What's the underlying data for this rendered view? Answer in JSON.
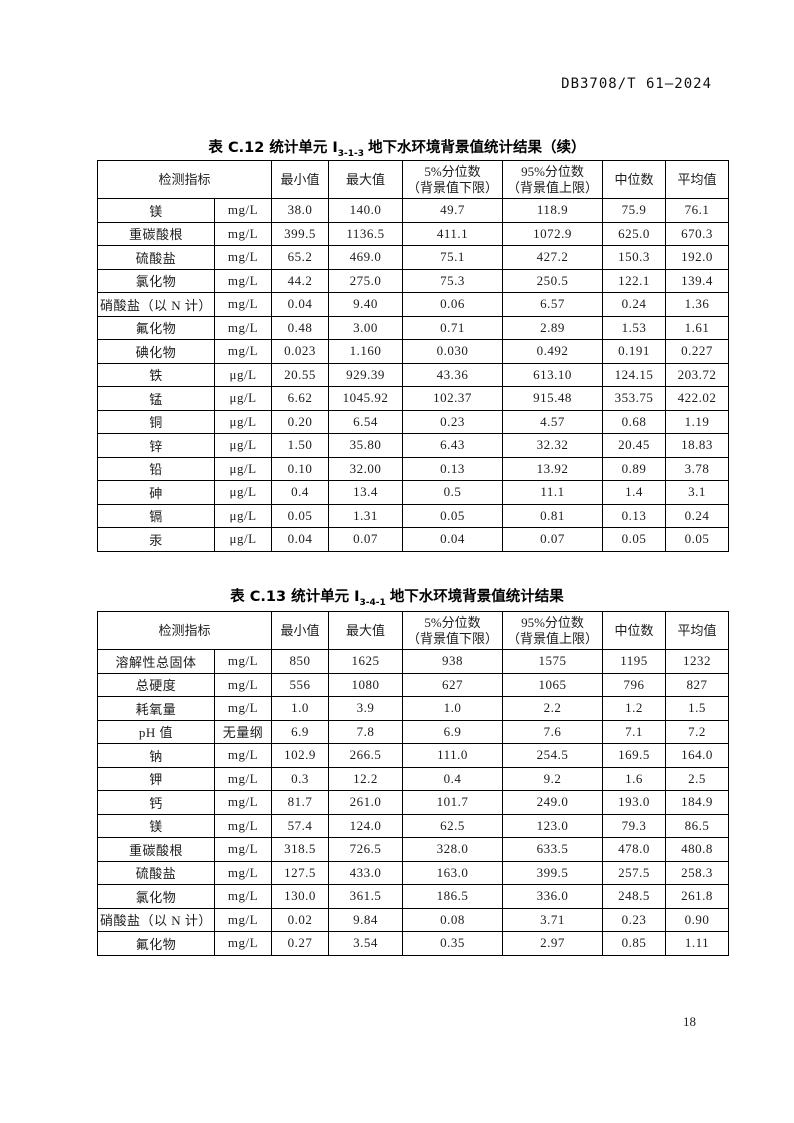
{
  "header": {
    "doc_code": "DB3708/T 61—2024"
  },
  "footer": {
    "page_number": "18"
  },
  "tables": [
    {
      "title": {
        "prefix": "表 C.12  统计单元  Ⅰ",
        "subscript": "3-1-3",
        "suffix": "地下水环境背景值统计结果（续）"
      },
      "columns": {
        "indicator": "检测指标",
        "min": "最小值",
        "max": "最大值",
        "p5_line1": "5%分位数",
        "p5_line2": "（背景值下限）",
        "p95_line1": "95%分位数",
        "p95_line2": "（背景值上限）",
        "median": "中位数",
        "mean": "平均值"
      },
      "rows": [
        [
          "镁",
          "mg/L",
          "38.0",
          "140.0",
          "49.7",
          "118.9",
          "75.9",
          "76.1"
        ],
        [
          "重碳酸根",
          "mg/L",
          "399.5",
          "1136.5",
          "411.1",
          "1072.9",
          "625.0",
          "670.3"
        ],
        [
          "硫酸盐",
          "mg/L",
          "65.2",
          "469.0",
          "75.1",
          "427.2",
          "150.3",
          "192.0"
        ],
        [
          "氯化物",
          "mg/L",
          "44.2",
          "275.0",
          "75.3",
          "250.5",
          "122.1",
          "139.4"
        ],
        [
          "硝酸盐（以 N 计）",
          "mg/L",
          "0.04",
          "9.40",
          "0.06",
          "6.57",
          "0.24",
          "1.36"
        ],
        [
          "氟化物",
          "mg/L",
          "0.48",
          "3.00",
          "0.71",
          "2.89",
          "1.53",
          "1.61"
        ],
        [
          "碘化物",
          "mg/L",
          "0.023",
          "1.160",
          "0.030",
          "0.492",
          "0.191",
          "0.227"
        ],
        [
          "铁",
          "μg/L",
          "20.55",
          "929.39",
          "43.36",
          "613.10",
          "124.15",
          "203.72"
        ],
        [
          "锰",
          "μg/L",
          "6.62",
          "1045.92",
          "102.37",
          "915.48",
          "353.75",
          "422.02"
        ],
        [
          "铜",
          "μg/L",
          "0.20",
          "6.54",
          "0.23",
          "4.57",
          "0.68",
          "1.19"
        ],
        [
          "锌",
          "μg/L",
          "1.50",
          "35.80",
          "6.43",
          "32.32",
          "20.45",
          "18.83"
        ],
        [
          "铅",
          "μg/L",
          "0.10",
          "32.00",
          "0.13",
          "13.92",
          "0.89",
          "3.78"
        ],
        [
          "砷",
          "μg/L",
          "0.4",
          "13.4",
          "0.5",
          "11.1",
          "1.4",
          "3.1"
        ],
        [
          "镉",
          "μg/L",
          "0.05",
          "1.31",
          "0.05",
          "0.81",
          "0.13",
          "0.24"
        ],
        [
          "汞",
          "μg/L",
          "0.04",
          "0.07",
          "0.04",
          "0.07",
          "0.05",
          "0.05"
        ]
      ]
    },
    {
      "title": {
        "prefix": "表 C.13  统计单元  Ⅰ",
        "subscript": "3-4-1",
        "suffix": "地下水环境背景值统计结果"
      },
      "columns": {
        "indicator": "检测指标",
        "min": "最小值",
        "max": "最大值",
        "p5_line1": "5%分位数",
        "p5_line2": "（背景值下限）",
        "p95_line1": "95%分位数",
        "p95_line2": "（背景值上限）",
        "median": "中位数",
        "mean": "平均值"
      },
      "rows": [
        [
          "溶解性总固体",
          "mg/L",
          "850",
          "1625",
          "938",
          "1575",
          "1195",
          "1232"
        ],
        [
          "总硬度",
          "mg/L",
          "556",
          "1080",
          "627",
          "1065",
          "796",
          "827"
        ],
        [
          "耗氧量",
          "mg/L",
          "1.0",
          "3.9",
          "1.0",
          "2.2",
          "1.2",
          "1.5"
        ],
        [
          "pH 值",
          "无量纲",
          "6.9",
          "7.8",
          "6.9",
          "7.6",
          "7.1",
          "7.2"
        ],
        [
          "钠",
          "mg/L",
          "102.9",
          "266.5",
          "111.0",
          "254.5",
          "169.5",
          "164.0"
        ],
        [
          "钾",
          "mg/L",
          "0.3",
          "12.2",
          "0.4",
          "9.2",
          "1.6",
          "2.5"
        ],
        [
          "钙",
          "mg/L",
          "81.7",
          "261.0",
          "101.7",
          "249.0",
          "193.0",
          "184.9"
        ],
        [
          "镁",
          "mg/L",
          "57.4",
          "124.0",
          "62.5",
          "123.0",
          "79.3",
          "86.5"
        ],
        [
          "重碳酸根",
          "mg/L",
          "318.5",
          "726.5",
          "328.0",
          "633.5",
          "478.0",
          "480.8"
        ],
        [
          "硫酸盐",
          "mg/L",
          "127.5",
          "433.0",
          "163.0",
          "399.5",
          "257.5",
          "258.3"
        ],
        [
          "氯化物",
          "mg/L",
          "130.0",
          "361.5",
          "186.5",
          "336.0",
          "248.5",
          "261.8"
        ],
        [
          "硝酸盐（以 N 计）",
          "mg/L",
          "0.02",
          "9.84",
          "0.08",
          "3.71",
          "0.23",
          "0.90"
        ],
        [
          "氟化物",
          "mg/L",
          "0.27",
          "3.54",
          "0.35",
          "2.97",
          "0.85",
          "1.11"
        ]
      ]
    }
  ]
}
